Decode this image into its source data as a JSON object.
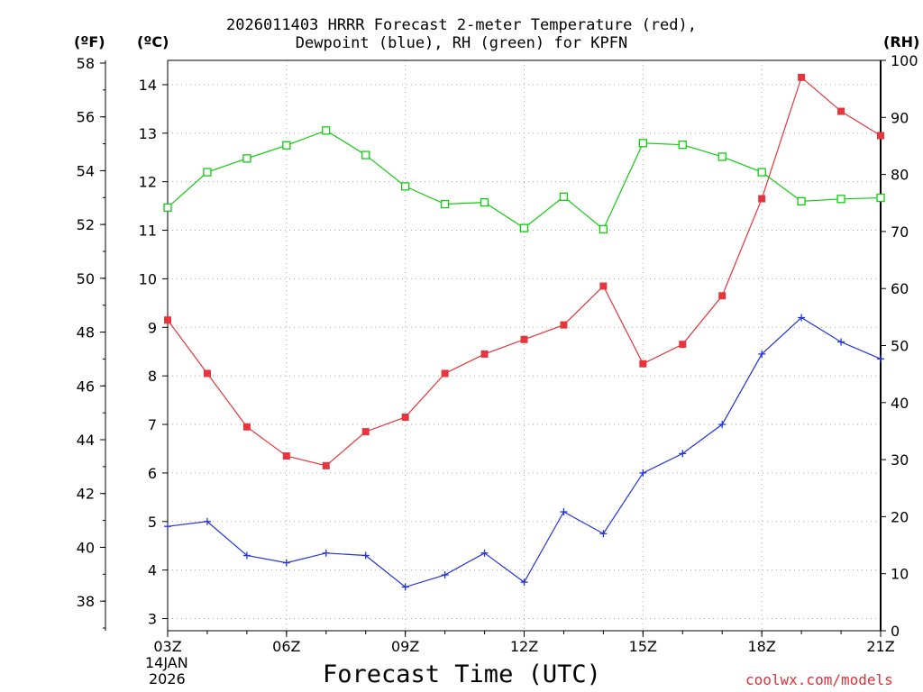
{
  "header": {
    "title_line1": "2026011403 HRRR Forecast 2-meter Temperature (red),",
    "title_line2": "Dewpoint (blue), RH (green) for KPFN",
    "unit_f": "(ºF)",
    "unit_c": "(ºC)",
    "unit_rh": "(RH)"
  },
  "footer": {
    "xlabel": "Forecast Time (UTC)",
    "credit": "coolwx.com/models",
    "date_line1": "14JAN",
    "date_line2": "2026"
  },
  "colors": {
    "temperature": "#e8343c",
    "dewpoint": "#2233dd",
    "rh": "#11cc11",
    "grid": "#aaaaaa",
    "axis": "#000000"
  },
  "chart_data": {
    "type": "line",
    "x_ticks": [
      "03Z",
      "06Z",
      "09Z",
      "12Z",
      "15Z",
      "18Z",
      "21Z"
    ],
    "x_hours": [
      3,
      4,
      5,
      6,
      7,
      8,
      9,
      10,
      11,
      12,
      13,
      14,
      15,
      16,
      17,
      18,
      19,
      20,
      21
    ],
    "xlim": [
      3,
      21
    ],
    "axes": {
      "fahrenheit": {
        "range": [
          36.9,
          58.1
        ],
        "ticks": [
          38,
          40,
          42,
          44,
          46,
          48,
          50,
          52,
          54,
          56,
          58
        ]
      },
      "celsius": {
        "range": [
          2.75,
          14.5
        ],
        "ticks": [
          3,
          4,
          5,
          6,
          7,
          8,
          9,
          10,
          11,
          12,
          13,
          14
        ]
      },
      "rh": {
        "range": [
          0,
          100
        ],
        "ticks": [
          0,
          10,
          20,
          30,
          40,
          50,
          60,
          70,
          80,
          90,
          100
        ]
      }
    },
    "series": [
      {
        "name": "Temperature",
        "unit": "C",
        "marker": "filled-square",
        "color": "#e8343c",
        "values": [
          9.15,
          8.05,
          6.95,
          6.35,
          6.15,
          6.85,
          7.15,
          8.05,
          8.45,
          8.75,
          9.05,
          9.85,
          8.25,
          8.65,
          9.65,
          11.65,
          14.15,
          13.45,
          12.95
        ]
      },
      {
        "name": "Dewpoint",
        "unit": "C",
        "marker": "plus",
        "color": "#2233dd",
        "values": [
          4.9,
          5.0,
          4.3,
          4.15,
          4.35,
          4.3,
          3.65,
          3.9,
          4.35,
          3.75,
          5.2,
          4.75,
          6.0,
          6.4,
          7.0,
          8.45,
          9.2,
          8.7,
          8.35
        ]
      },
      {
        "name": "RH",
        "unit": "%",
        "marker": "open-square",
        "color": "#11cc11",
        "values": [
          74.2,
          80.4,
          82.8,
          85.1,
          87.7,
          83.4,
          77.9,
          74.8,
          75.1,
          70.6,
          76.1,
          70.4,
          85.5,
          85.2,
          83.1,
          80.4,
          75.3,
          75.7,
          75.9
        ]
      }
    ]
  }
}
